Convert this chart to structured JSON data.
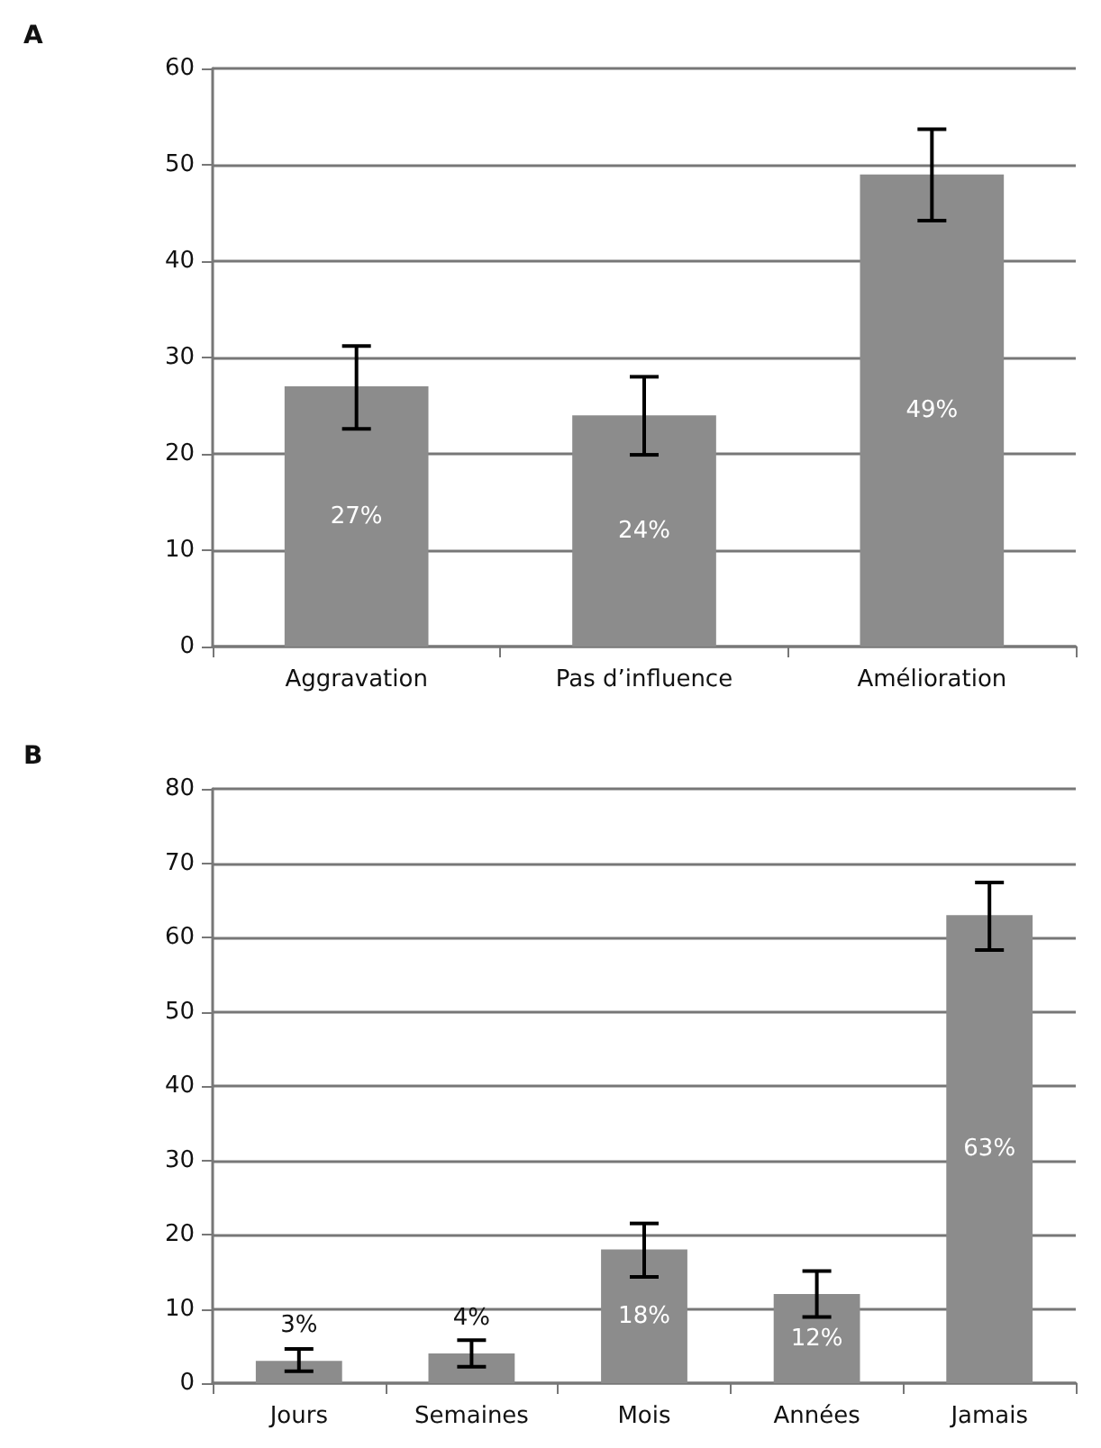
{
  "chart_data": [
    {
      "type": "bar",
      "title": "A",
      "categories": [
        "Aggravation",
        "Pas d’influence",
        "Amélioration"
      ],
      "values": [
        27,
        24,
        49
      ],
      "color": "#8c8c8c",
      "errors": [
        [
          22.6,
          31.2
        ],
        [
          19.9,
          28
        ],
        [
          44.2,
          53.7
        ]
      ],
      "value_labels": [
        "27%",
        "24%",
        "49%"
      ],
      "ylim": [
        0,
        60
      ],
      "yticks": [
        0,
        10,
        20,
        30,
        40,
        50,
        60
      ],
      "grid": "y"
    },
    {
      "type": "bar",
      "title": "B",
      "categories": [
        "Jours",
        "Semaines",
        "Mois",
        "Années",
        "Jamais"
      ],
      "values": [
        3,
        4,
        18,
        12,
        63
      ],
      "color": "#8c8c8c",
      "errors": [
        [
          1.6,
          4.6
        ],
        [
          2.2,
          5.8
        ],
        [
          14.3,
          21.5
        ],
        [
          8.9,
          15.1
        ],
        [
          58.3,
          67.4
        ]
      ],
      "value_labels": [
        "3%",
        "4%",
        "18%",
        "12%",
        "63%"
      ],
      "ylim": [
        0,
        80
      ],
      "yticks": [
        0,
        10,
        20,
        30,
        40,
        50,
        60,
        70,
        80
      ],
      "grid": "y"
    }
  ]
}
